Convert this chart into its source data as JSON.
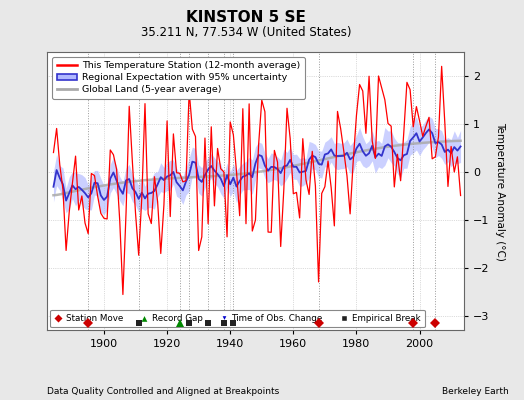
{
  "title": "KINSTON 5 SE",
  "subtitle": "35.211 N, 77.534 W (United States)",
  "ylabel": "Temperature Anomaly (°C)",
  "footer_left": "Data Quality Controlled and Aligned at Breakpoints",
  "footer_right": "Berkeley Earth",
  "year_start": 1884,
  "year_end": 2013,
  "ylim": [
    -3.3,
    2.5
  ],
  "yticks": [
    -3,
    -2,
    -1,
    0,
    1,
    2
  ],
  "xticks": [
    1900,
    1920,
    1940,
    1960,
    1980,
    2000
  ],
  "xlim_start": 1882,
  "xlim_end": 2014,
  "station_moves": [
    1895,
    1968,
    1998,
    2005
  ],
  "record_gaps": [
    1924
  ],
  "time_obs_changes": [],
  "empirical_breaks": [
    1911,
    1927,
    1933,
    1938,
    1941
  ],
  "bg_color": "#e8e8e8",
  "plot_bg_color": "#ffffff",
  "station_color": "#ff0000",
  "regional_color": "#3333cc",
  "regional_fill_color": "#b0b8ff",
  "global_color": "#aaaaaa",
  "seed": 137
}
